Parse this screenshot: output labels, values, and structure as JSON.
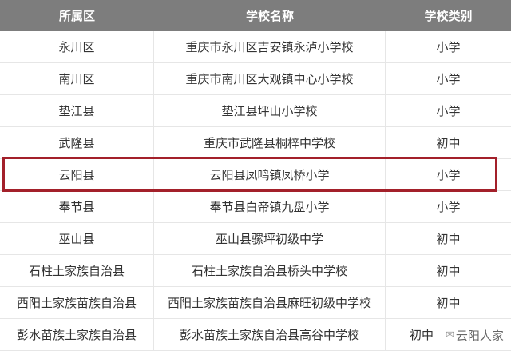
{
  "header": {
    "district": "所属区",
    "school_name": "学校名称",
    "school_type": "学校类别"
  },
  "rows": [
    {
      "district": "永川区",
      "school_name": "重庆市永川区吉安镇永泸小学校",
      "school_type": "小学"
    },
    {
      "district": "南川区",
      "school_name": "重庆市南川区大观镇中心小学校",
      "school_type": "小学"
    },
    {
      "district": "垫江县",
      "school_name": "垫江县坪山小学校",
      "school_type": "小学"
    },
    {
      "district": "武隆县",
      "school_name": "重庆市武隆县桐梓中学校",
      "school_type": "初中"
    },
    {
      "district": "云阳县",
      "school_name": "云阳县凤鸣镇凤桥小学",
      "school_type": "小学"
    },
    {
      "district": "奉节县",
      "school_name": "奉节县白帝镇九盘小学",
      "school_type": "小学"
    },
    {
      "district": "巫山县",
      "school_name": "巫山县骡坪初级中学",
      "school_type": "初中"
    },
    {
      "district": "石柱土家族自治县",
      "school_name": "石柱土家族自治县桥头中学校",
      "school_type": "初中"
    },
    {
      "district": "酉阳土家族苗族自治县",
      "school_name": "酉阳土家族苗族自治县麻旺初级中学校",
      "school_type": "初中"
    },
    {
      "district": "彭水苗族土家族自治县",
      "school_name": "彭水苗族土家族自治县高谷中学校",
      "school_type": "初中"
    }
  ],
  "highlighted_row_index": 4,
  "highlight_color": "#a3202a",
  "header_bg": "#7d7d7d",
  "watermark": {
    "icon": "wechat-icon",
    "text": "云阳人家"
  }
}
